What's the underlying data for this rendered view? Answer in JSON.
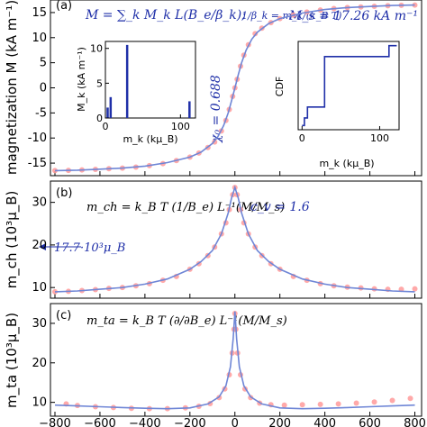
{
  "chart_data": [
    {
      "type": "line",
      "panel_label": "(a)",
      "ylabel": "magnetization M (kA m⁻¹)",
      "ylim": [
        -17.5,
        17.5
      ],
      "yticks": [
        -15,
        -10,
        -5,
        0,
        5,
        10,
        15
      ],
      "annotations": {
        "formula_left": "M = ∑_k M_k L(B_e/β_k);",
        "formula_right": "1/β_k = m_k/(k_B T)",
        "ms": "M_s = 17.26 kA m⁻¹",
        "chi": "χ₀ = 0.688"
      },
      "series": [
        {
          "values": [
            [
              -800,
              -16.5
            ],
            [
              -700,
              -16.4
            ],
            [
              -600,
              -16.2
            ],
            [
              -500,
              -16.0
            ],
            [
              -400,
              -15.6
            ],
            [
              -300,
              -14.9
            ],
            [
              -200,
              -13.8
            ],
            [
              -150,
              -12.8
            ],
            [
              -100,
              -11.1
            ],
            [
              -75,
              -9.7
            ],
            [
              -50,
              -7.5
            ],
            [
              -30,
              -5.0
            ],
            [
              -15,
              -2.6
            ],
            [
              0,
              0
            ],
            [
              15,
              2.6
            ],
            [
              30,
              5.0
            ],
            [
              50,
              7.5
            ],
            [
              75,
              9.7
            ],
            [
              100,
              11.1
            ],
            [
              150,
              12.8
            ],
            [
              200,
              13.8
            ],
            [
              300,
              14.9
            ],
            [
              400,
              15.6
            ],
            [
              500,
              16.0
            ],
            [
              600,
              16.2
            ],
            [
              700,
              16.4
            ],
            [
              800,
              16.5
            ]
          ]
        }
      ],
      "points": [
        [
          -800,
          -16.5
        ],
        [
          -740,
          -16.45
        ],
        [
          -680,
          -16.35
        ],
        [
          -620,
          -16.25
        ],
        [
          -560,
          -16.1
        ],
        [
          -500,
          -16.0
        ],
        [
          -440,
          -15.8
        ],
        [
          -380,
          -15.5
        ],
        [
          -320,
          -15.1
        ],
        [
          -260,
          -14.5
        ],
        [
          -200,
          -13.8
        ],
        [
          -160,
          -13.0
        ],
        [
          -120,
          -11.9
        ],
        [
          -90,
          -10.8
        ],
        [
          -60,
          -8.6
        ],
        [
          -40,
          -6.5
        ],
        [
          -25,
          -4.3
        ],
        [
          -10,
          -1.7
        ],
        [
          0,
          0
        ],
        [
          10,
          1.7
        ],
        [
          25,
          4.3
        ],
        [
          40,
          6.5
        ],
        [
          60,
          8.6
        ],
        [
          90,
          10.8
        ],
        [
          120,
          11.9
        ],
        [
          160,
          13.0
        ],
        [
          200,
          13.8
        ],
        [
          260,
          14.5
        ],
        [
          320,
          15.1
        ],
        [
          380,
          15.5
        ],
        [
          440,
          15.8
        ],
        [
          500,
          16.0
        ],
        [
          560,
          16.1
        ],
        [
          620,
          16.25
        ],
        [
          680,
          16.35
        ],
        [
          740,
          16.45
        ],
        [
          800,
          16.5
        ]
      ]
    },
    {
      "type": "bar",
      "inset": "left",
      "xlabel": "m_k (kμ_B)",
      "ylabel": "M_k (kA m⁻¹)",
      "xlim": [
        0,
        120
      ],
      "ylim": [
        0,
        11
      ],
      "xticks": [
        0,
        100
      ],
      "yticks": [
        0,
        5,
        10
      ],
      "bars": [
        [
          3,
          1.5
        ],
        [
          7,
          3.0
        ],
        [
          29,
          10.5
        ],
        [
          112,
          2.4
        ]
      ]
    },
    {
      "type": "line",
      "inset": "right",
      "xlabel": "m_k (kμ_B)",
      "ylabel": "CDF",
      "xlim": [
        -5,
        125
      ],
      "ylim": [
        0,
        1.05
      ],
      "xticks": [
        0,
        100
      ],
      "steps": [
        [
          0,
          0.05
        ],
        [
          3,
          0.14
        ],
        [
          7,
          0.27
        ],
        [
          29,
          0.87
        ],
        [
          112,
          1.0
        ]
      ]
    },
    {
      "type": "line",
      "panel_label": "(b)",
      "ylabel": "m_ch (10³μ_B)",
      "ylim": [
        7.5,
        35
      ],
      "yticks": [
        10,
        20,
        30
      ],
      "annotations": {
        "formula": "m_ch = k_B T (1/B_e) L⁻¹(M/M_s)",
        "cv": "c_v = 1.6",
        "arrow": "17.7·10³μ_B"
      },
      "series": [
        {
          "values": [
            [
              -800,
              9.0
            ],
            [
              -700,
              9.2
            ],
            [
              -600,
              9.6
            ],
            [
              -500,
              10.0
            ],
            [
              -400,
              10.8
            ],
            [
              -300,
              12.0
            ],
            [
              -200,
              14.3
            ],
            [
              -150,
              16.1
            ],
            [
              -100,
              18.7
            ],
            [
              -60,
              22.6
            ],
            [
              -30,
              27.5
            ],
            [
              -15,
              31.0
            ],
            [
              0,
              33.5
            ],
            [
              15,
              31.0
            ],
            [
              30,
              27.5
            ],
            [
              60,
              22.6
            ],
            [
              100,
              18.7
            ],
            [
              150,
              16.1
            ],
            [
              200,
              14.3
            ],
            [
              300,
              12.0
            ],
            [
              400,
              10.8
            ],
            [
              500,
              10.0
            ],
            [
              600,
              9.6
            ],
            [
              700,
              9.2
            ],
            [
              800,
              9.0
            ]
          ]
        }
      ],
      "points": [
        [
          -800,
          9.0
        ],
        [
          -740,
          9.1
        ],
        [
          -680,
          9.3
        ],
        [
          -620,
          9.5
        ],
        [
          -560,
          9.8
        ],
        [
          -500,
          10.0
        ],
        [
          -440,
          10.4
        ],
        [
          -380,
          10.9
        ],
        [
          -320,
          11.7
        ],
        [
          -260,
          12.6
        ],
        [
          -200,
          14.3
        ],
        [
          -160,
          15.6
        ],
        [
          -120,
          17.5
        ],
        [
          -90,
          19.5
        ],
        [
          -60,
          22.6
        ],
        [
          -40,
          25.2
        ],
        [
          -25,
          28.3
        ],
        [
          -10,
          31.8
        ],
        [
          0,
          33.5
        ],
        [
          10,
          31.8
        ],
        [
          25,
          28.3
        ],
        [
          40,
          25.2
        ],
        [
          60,
          22.6
        ],
        [
          90,
          19.5
        ],
        [
          120,
          17.5
        ],
        [
          160,
          15.6
        ],
        [
          200,
          14.3
        ],
        [
          260,
          12.6
        ],
        [
          320,
          11.7
        ],
        [
          380,
          10.9
        ],
        [
          440,
          10.4
        ],
        [
          500,
          10.1
        ],
        [
          560,
          9.9
        ],
        [
          620,
          9.7
        ],
        [
          680,
          9.6
        ],
        [
          740,
          9.6
        ],
        [
          800,
          9.7
        ]
      ]
    },
    {
      "type": "line",
      "panel_label": "(c)",
      "ylabel": "m_ta (10³μ_B)",
      "xlabel": "",
      "xlim": [
        -820,
        830
      ],
      "xticks": [
        -800,
        -600,
        -400,
        -200,
        0,
        200,
        400,
        600,
        800
      ],
      "ylim": [
        6.5,
        35
      ],
      "yticks": [
        10,
        20,
        30
      ],
      "annotations": {
        "formula": "m_ta = k_B T (∂/∂B_e) L⁻¹(M/M_s)"
      },
      "series": [
        {
          "values": [
            [
              -800,
              9.3
            ],
            [
              -700,
              9.1
            ],
            [
              -600,
              8.9
            ],
            [
              -500,
              8.7
            ],
            [
              -400,
              8.5
            ],
            [
              -300,
              8.4
            ],
            [
              -200,
              8.6
            ],
            [
              -120,
              9.6
            ],
            [
              -70,
              11.4
            ],
            [
              -40,
              14.2
            ],
            [
              -20,
              19.0
            ],
            [
              -8,
              26.0
            ],
            [
              0,
              33.0
            ],
            [
              8,
              26.0
            ],
            [
              20,
              19.0
            ],
            [
              40,
              14.2
            ],
            [
              70,
              11.4
            ],
            [
              120,
              9.6
            ],
            [
              200,
              8.6
            ],
            [
              300,
              8.4
            ],
            [
              400,
              8.5
            ],
            [
              500,
              8.7
            ],
            [
              600,
              8.9
            ],
            [
              700,
              9.1
            ],
            [
              800,
              9.3
            ]
          ]
        }
      ],
      "points": [
        [
          -750,
          9.6
        ],
        [
          -700,
          9.2
        ],
        [
          -620,
          8.9
        ],
        [
          -540,
          8.7
        ],
        [
          -460,
          8.5
        ],
        [
          -380,
          8.4
        ],
        [
          -300,
          8.4
        ],
        [
          -220,
          8.6
        ],
        [
          -160,
          9.0
        ],
        [
          -110,
          9.7
        ],
        [
          -70,
          11.2
        ],
        [
          -45,
          13.4
        ],
        [
          -25,
          17.0
        ],
        [
          -12,
          22.5
        ],
        [
          -4,
          28.5
        ],
        [
          0,
          32.5
        ],
        [
          4,
          28.5
        ],
        [
          12,
          22.5
        ],
        [
          25,
          17.0
        ],
        [
          45,
          13.4
        ],
        [
          70,
          11.2
        ],
        [
          110,
          9.8
        ],
        [
          160,
          9.4
        ],
        [
          220,
          9.3
        ],
        [
          300,
          9.4
        ],
        [
          380,
          9.5
        ],
        [
          460,
          9.6
        ],
        [
          540,
          9.8
        ],
        [
          620,
          10.1
        ],
        [
          700,
          10.5
        ],
        [
          780,
          11.0
        ]
      ]
    }
  ],
  "colors": {
    "line": "#6f86d6",
    "marker": "#ff9a9a",
    "accent": "#1f2fa8"
  }
}
